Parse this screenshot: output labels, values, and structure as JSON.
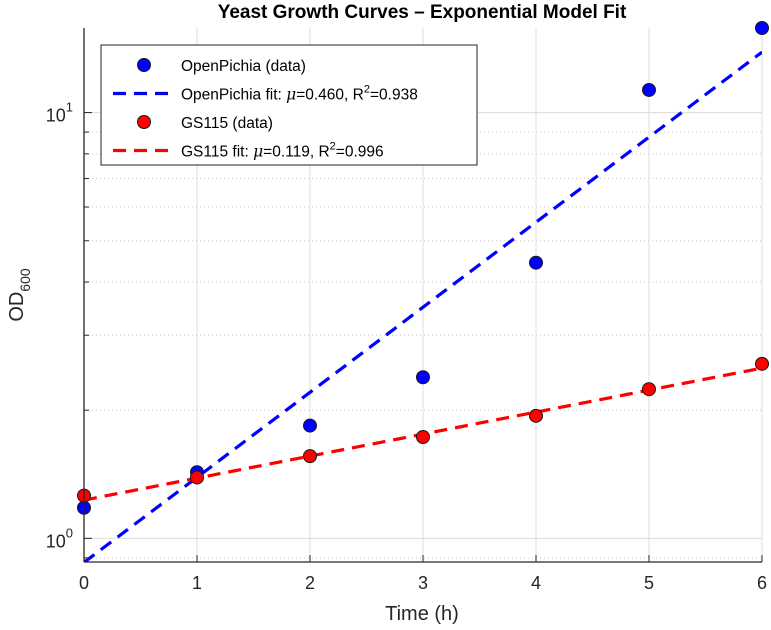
{
  "chart_data": {
    "type": "scatter",
    "title": "Yeast Growth Curves – Exponential Model Fit",
    "xlabel": "Time (h)",
    "ylabel": "OD",
    "ylabel_subscript": "600",
    "yscale": "log",
    "xlim": [
      0,
      6
    ],
    "ylim": [
      0.88,
      15.8
    ],
    "grid": true,
    "minor_grid": true,
    "legend_position": "top-left",
    "x_ticks": [
      "0",
      "1",
      "2",
      "3",
      "4",
      "5",
      "6"
    ],
    "y_ticks": [
      {
        "base": "10",
        "exp": "0",
        "value": 1
      },
      {
        "base": "10",
        "exp": "1",
        "value": 10
      }
    ],
    "x": [
      0,
      1,
      2,
      3,
      4,
      5,
      6
    ],
    "series": [
      {
        "name": "OpenPichia (data)",
        "kind": "markers",
        "color": "#0000ff",
        "values": [
          1.18,
          1.43,
          1.84,
          2.39,
          4.44,
          11.3,
          15.8
        ]
      },
      {
        "name": "OpenPichia fit",
        "kind": "dashed-line",
        "color": "#0000ff",
        "legend_prefix": "OpenPichia fit: ",
        "mu": "0.460",
        "r2": "0.938",
        "a": 0.878,
        "rate": 0.46
      },
      {
        "name": "GS115 (data)",
        "kind": "markers",
        "color": "#ff0000",
        "values": [
          1.26,
          1.39,
          1.56,
          1.73,
          1.94,
          2.24,
          2.57
        ]
      },
      {
        "name": "GS115 fit",
        "kind": "dashed-line",
        "color": "#ff0000",
        "legend_prefix": "GS115 fit: ",
        "mu": "0.119",
        "r2": "0.996",
        "a": 1.23,
        "rate": 0.119
      }
    ],
    "legend": [
      {
        "text": "OpenPichia (data)",
        "kind": "marker",
        "color": "#0000ff"
      },
      {
        "text_prefix": "OpenPichia fit: ",
        "mu": "0.460",
        "r2": "0.938",
        "kind": "line",
        "color": "#0000ff"
      },
      {
        "text": "GS115 (data)",
        "kind": "marker",
        "color": "#ff0000"
      },
      {
        "text_prefix": "GS115 fit: ",
        "mu": "0.119",
        "r2": "0.996",
        "kind": "line",
        "color": "#ff0000"
      }
    ]
  }
}
